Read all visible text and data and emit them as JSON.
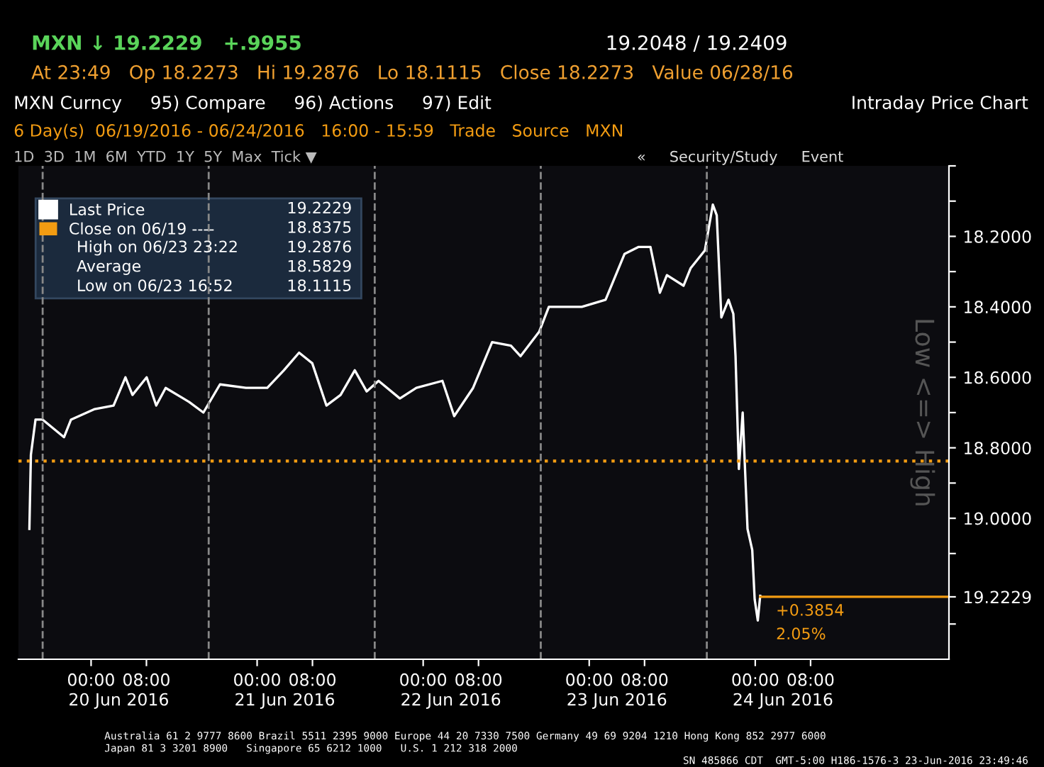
{
  "chart_data": {
    "type": "line",
    "title": "Intraday Price Chart",
    "x": [
      "2016-06-19T15:05",
      "2016-06-19T15:18",
      "2016-06-19T15:58",
      "2016-06-19T17:00",
      "2016-06-19T20:05",
      "2016-06-19T21:06",
      "2016-06-20T00:32",
      "2016-06-20T03:15",
      "2016-06-20T04:58",
      "2016-06-20T05:59",
      "2016-06-20T08:02",
      "2016-06-20T09:25",
      "2016-06-20T10:47",
      "2016-06-20T14:11",
      "2016-06-20T16:14",
      "2016-06-20T18:38",
      "2016-06-20T22:23",
      "2016-06-21T01:28",
      "2016-06-21T03:52",
      "2016-06-21T06:04",
      "2016-06-21T07:58",
      "2016-06-21T10:01",
      "2016-06-21T12:04",
      "2016-06-21T14:07",
      "2016-06-21T15:50",
      "2016-06-21T17:33",
      "2016-06-21T20:38",
      "2016-06-21T23:01",
      "2016-06-22T02:47",
      "2016-06-22T04:29",
      "2016-06-22T07:13",
      "2016-06-22T09:58",
      "2016-06-22T12:41",
      "2016-06-22T14:04",
      "2016-06-22T16:47",
      "2016-06-22T18:10",
      "2016-06-22T22:56",
      "2016-06-23T02:22",
      "2016-06-23T05:06",
      "2016-06-23T07:09",
      "2016-06-23T08:51",
      "2016-06-23T10:13",
      "2016-06-23T11:14",
      "2016-06-23T13:38",
      "2016-06-23T14:40",
      "2016-06-23T16:43",
      "2016-06-23T17:52",
      "2016-06-23T18:26",
      "2016-06-23T19:06",
      "2016-06-23T20:08",
      "2016-06-23T20:50",
      "2016-06-23T21:09",
      "2016-06-23T21:38",
      "2016-06-23T22:11",
      "2016-06-23T22:53",
      "2016-06-23T23:34",
      "2016-06-23T23:55",
      "2016-06-24T00:22",
      "2016-06-24T00:43"
    ],
    "series": [
      {
        "name": "Last Price",
        "color": "#ffffff",
        "values": [
          19.03,
          18.82,
          18.72,
          18.72,
          18.77,
          18.72,
          18.69,
          18.68,
          18.6,
          18.65,
          18.6,
          18.68,
          18.63,
          18.67,
          18.7,
          18.62,
          18.63,
          18.63,
          18.58,
          18.53,
          18.56,
          18.68,
          18.65,
          18.58,
          18.64,
          18.61,
          18.66,
          18.63,
          18.61,
          18.71,
          18.63,
          18.5,
          18.51,
          18.54,
          18.47,
          18.4,
          18.4,
          18.38,
          18.25,
          18.23,
          18.23,
          18.36,
          18.31,
          18.34,
          18.29,
          18.24,
          18.11,
          18.14,
          18.43,
          18.38,
          18.42,
          18.54,
          18.86,
          18.7,
          19.03,
          19.09,
          19.23,
          19.29,
          19.22
        ]
      }
    ],
    "xlim": [
      "2016-06-19T13:30",
      "2016-06-25T04:00"
    ],
    "xticks": [
      {
        "value": "2016-06-20T00:00",
        "label": "00:00"
      },
      {
        "value": "2016-06-20T08:00",
        "label": "08:00"
      },
      {
        "value": "2016-06-21T00:00",
        "label": "00:00"
      },
      {
        "value": "2016-06-21T08:00",
        "label": "08:00"
      },
      {
        "value": "2016-06-22T00:00",
        "label": "00:00"
      },
      {
        "value": "2016-06-22T08:00",
        "label": "08:00"
      },
      {
        "value": "2016-06-23T00:00",
        "label": "00:00"
      },
      {
        "value": "2016-06-23T08:00",
        "label": "08:00"
      },
      {
        "value": "2016-06-24T00:00",
        "label": "00:00"
      },
      {
        "value": "2016-06-24T08:00",
        "label": "08:00"
      }
    ],
    "ylim": [
      19.4,
      18.0
    ],
    "yticks": [
      {
        "value": 18.0,
        "label": null
      },
      {
        "value": 18.1,
        "label": null
      },
      {
        "value": 18.2,
        "label": "18.2000"
      },
      {
        "value": 18.3,
        "label": null
      },
      {
        "value": 18.4,
        "label": "18.4000"
      },
      {
        "value": 18.5,
        "label": null
      },
      {
        "value": 18.6,
        "label": "18.6000"
      },
      {
        "value": 18.7,
        "label": null
      },
      {
        "value": 18.8,
        "label": "18.8000"
      },
      {
        "value": 18.9,
        "label": null
      },
      {
        "value": 19.0,
        "label": "19.0000"
      },
      {
        "value": 19.1,
        "label": null
      },
      {
        "value": 19.2229,
        "label": "19.2229"
      },
      {
        "value": 19.3,
        "label": null
      }
    ],
    "ref_lines": [
      {
        "axis": "y",
        "value": 18.8375,
        "label": "Close on 06/19 ----",
        "color": "#f39c12",
        "line_style": "dotted"
      },
      {
        "axis": "y",
        "value": 19.2229,
        "color": "#f39c12",
        "line_style": "solid"
      },
      {
        "axis": "x",
        "value": "2016-06-19T17:00",
        "label": null,
        "color": "#888888",
        "line_style": "dashed"
      },
      {
        "axis": "x",
        "value": "2016-06-20T17:00",
        "label": null,
        "color": "#888888",
        "line_style": "dashed"
      },
      {
        "axis": "x",
        "value": "2016-06-21T17:00",
        "label": null,
        "color": "#888888",
        "line_style": "dashed"
      },
      {
        "axis": "x",
        "value": "2016-06-22T17:00",
        "label": null,
        "color": "#888888",
        "line_style": "dashed"
      },
      {
        "axis": "x",
        "value": "2016-06-23T17:00",
        "label": null,
        "color": "#888888",
        "line_style": "dashed"
      }
    ],
    "legend": "top left",
    "grid": false,
    "marker": "none",
    "line_style": "solid",
    "annotations": [
      "MXN ↓ 19.2229   +.9955",
      "19.2048 / 19.2409",
      "At 23:49   Op 18.2273   Hi 19.2876   Lo 18.1115   Close 18.2273   Value 06/28/16",
      "MXN Curncy     95) Compare     96) Actions     97) Edit",
      "6 Day(s)  06/19/2016 - 06/24/2016   16:00 - 15:59   Trade   Source   MXN",
      "1D  3D  1M  6M  YTD  1Y  5Y  Max  Tick ▼",
      "19.2229",
      "18.8375",
      "High on 06/23 23:22",
      "19.2876",
      "Average",
      "18.5829",
      "Low on 06/23 16:52",
      "18.1115",
      "20 Jun 2016",
      "21 Jun 2016",
      "22 Jun 2016",
      "23 Jun 2016",
      "24 Jun 2016",
      "Low <=> High",
      "+0.3854",
      "2.05%",
      "Australia 61 2 9777 8600 Brazil 5511 2395 9000 Europe 44 20 7330 7500 Germany 49 69 9204 1210 Hong Kong 852 2977 6000",
      "Japan 81 3 3201 8900   Singapore 65 6212 1000   U.S. 1 212 318 2000",
      "SN 485866 CDT  GMT-5:00 H186-1576-3 23-Jun-2016 23:49:46",
      "«     Security/Study     Event"
    ]
  }
}
